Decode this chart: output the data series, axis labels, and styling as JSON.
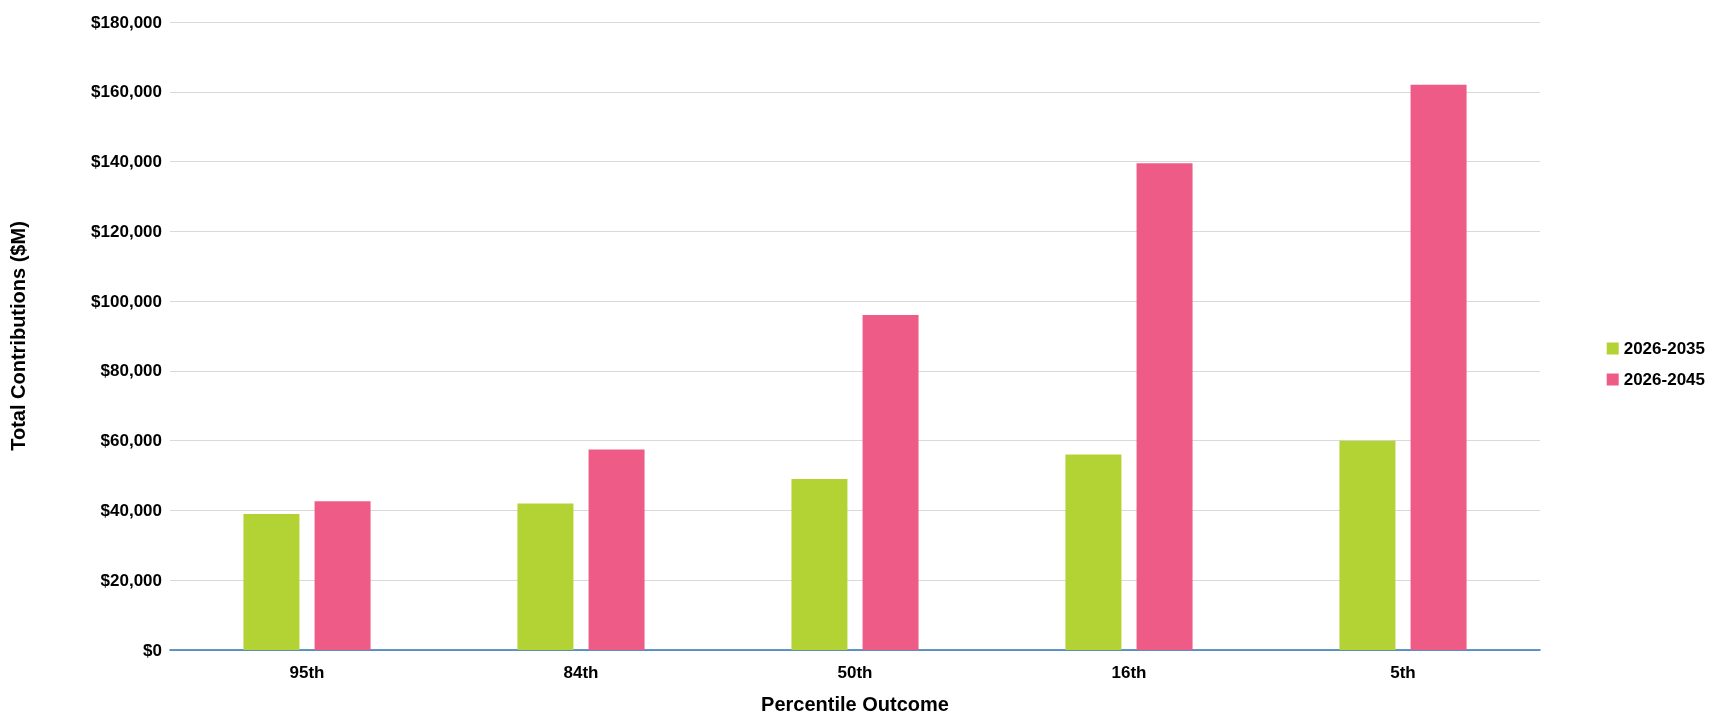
{
  "chart_data": {
    "type": "bar",
    "xlabel": "Percentile Outcome",
    "ylabel": "Total Contributions ($M)",
    "categories": [
      "95th",
      "84th",
      "50th",
      "16th",
      "5th"
    ],
    "series": [
      {
        "name": "2026-2035",
        "color": "#b3d335",
        "values": [
          39000,
          42000,
          49000,
          56000,
          60000
        ]
      },
      {
        "name": "2026-2045",
        "color": "#ef5b87",
        "values": [
          42600,
          57500,
          96000,
          139500,
          162000
        ]
      }
    ],
    "ylim": [
      0,
      180000
    ],
    "yticks": [
      {
        "value": 0,
        "label": "$0"
      },
      {
        "value": 20000,
        "label": "$20,000"
      },
      {
        "value": 40000,
        "label": "$40,000"
      },
      {
        "value": 60000,
        "label": "$60,000"
      },
      {
        "value": 80000,
        "label": "$80,000"
      },
      {
        "value": 100000,
        "label": "$100,000"
      },
      {
        "value": 120000,
        "label": "$120,000"
      },
      {
        "value": 140000,
        "label": "$140,000"
      },
      {
        "value": 160000,
        "label": "$160,000"
      },
      {
        "value": 180000,
        "label": "$180,000"
      }
    ],
    "grid": "y",
    "legend": "right"
  }
}
